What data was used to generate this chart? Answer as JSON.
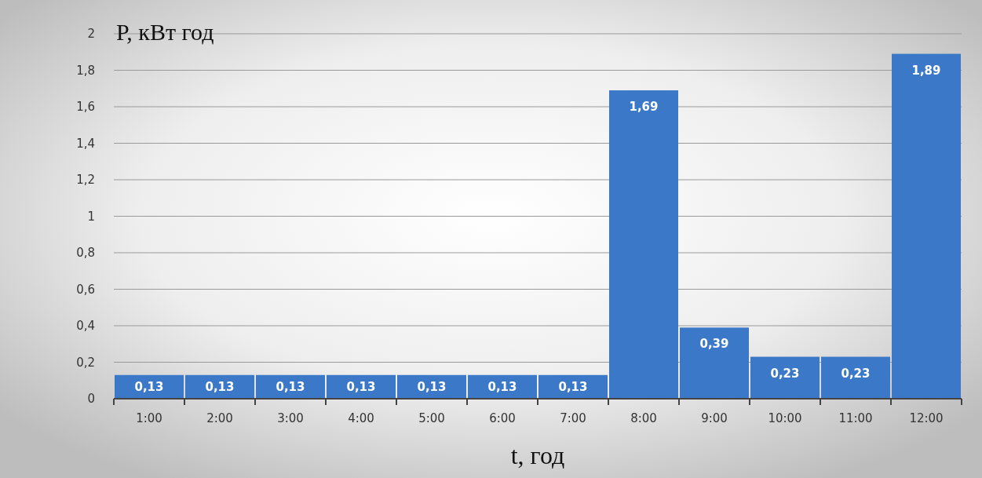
{
  "chart_data": {
    "type": "bar",
    "ylabel": "P, кВт год",
    "xlabel": "t, год",
    "categories": [
      "1:00",
      "2:00",
      "3:00",
      "4:00",
      "5:00",
      "6:00",
      "7:00",
      "8:00",
      "9:00",
      "10:00",
      "11:00",
      "12:00"
    ],
    "values": [
      0.13,
      0.13,
      0.13,
      0.13,
      0.13,
      0.13,
      0.13,
      1.69,
      0.39,
      0.23,
      0.23,
      1.89
    ],
    "value_labels": [
      "0,13",
      "0,13",
      "0,13",
      "0,13",
      "0,13",
      "0,13",
      "0,13",
      "1,69",
      "0,39",
      "0,23",
      "0,23",
      "1,89"
    ],
    "color": "#3b79c8",
    "ylim": [
      0,
      2
    ],
    "yticks": [
      0,
      {
        "value": 0.2,
        "label": "0,2"
      },
      {
        "value": 0.4,
        "label": "0,4"
      },
      {
        "value": 0.6,
        "label": "0,6"
      },
      {
        "value": 0.8,
        "label": "0,8"
      },
      1,
      {
        "value": 1.2,
        "label": "1,2"
      },
      {
        "value": 1.4,
        "label": "1,4"
      },
      {
        "value": 1.6,
        "label": "1,6"
      },
      {
        "value": 1.8,
        "label": "1,8"
      },
      2
    ],
    "grid": "y"
  }
}
